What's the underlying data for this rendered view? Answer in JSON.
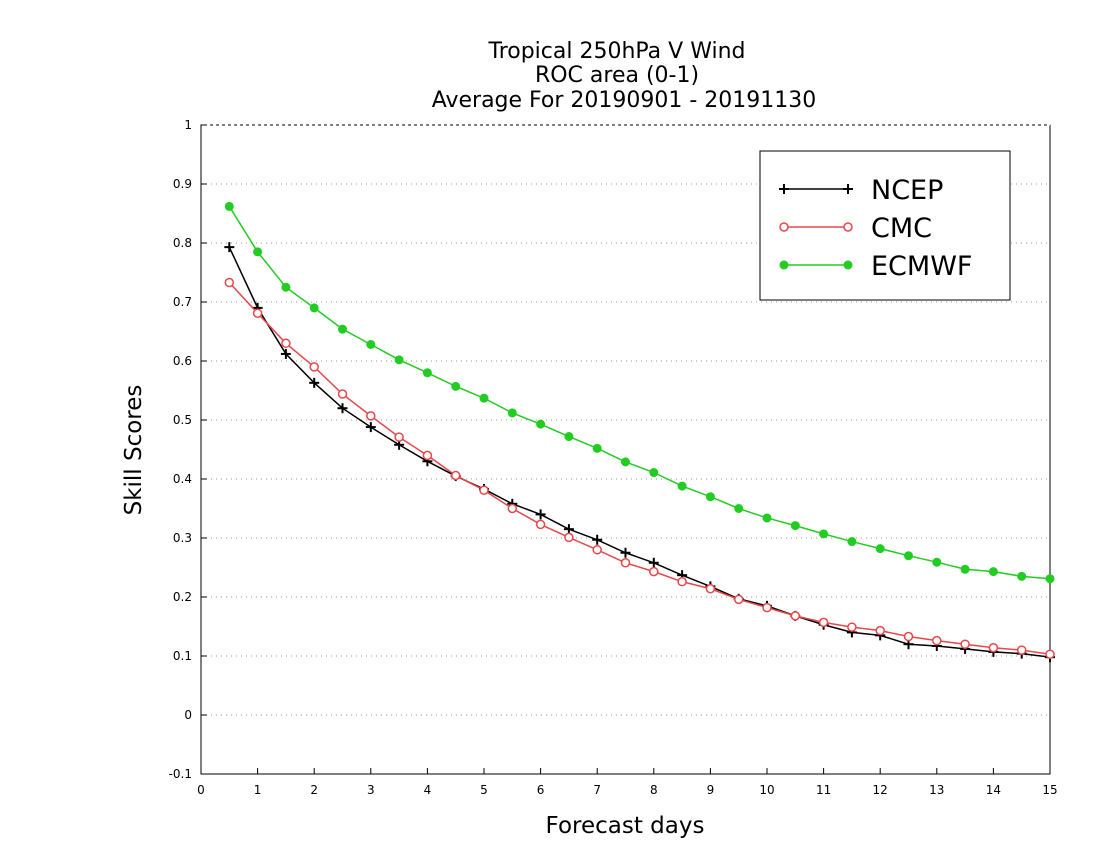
{
  "chart_data": {
    "type": "line",
    "title": [
      "Tropical 250hPa V Wind",
      "ROC area (0-1)",
      "Average For 20190901 - 20191130"
    ],
    "xlabel": "Forecast days",
    "ylabel": "Skill Scores",
    "xlim": [
      0,
      15
    ],
    "ylim": [
      -0.1,
      1
    ],
    "xticks": [
      0,
      1,
      2,
      3,
      4,
      5,
      6,
      7,
      8,
      9,
      10,
      11,
      12,
      13,
      14,
      15
    ],
    "yticks": [
      -0.1,
      0,
      0.1,
      0.2,
      0.3,
      0.4,
      0.5,
      0.6,
      0.7,
      0.8,
      0.9,
      1
    ],
    "ytick_labels": [
      "-0.1",
      "0",
      "0.1",
      "0.2",
      "0.3",
      "0.4",
      "0.5",
      "0.6",
      "0.7",
      "0.8",
      "0.9",
      "1"
    ],
    "grid": "horizontal-dotted",
    "legend_position": "top-right",
    "x": [
      0.5,
      1,
      1.5,
      2,
      2.5,
      3,
      3.5,
      4,
      4.5,
      5,
      5.5,
      6,
      6.5,
      7,
      7.5,
      8,
      8.5,
      9,
      9.5,
      10,
      10.5,
      11,
      11.5,
      12,
      12.5,
      13,
      13.5,
      14,
      14.5,
      15
    ],
    "series": [
      {
        "name": "NCEP",
        "color": "#000000",
        "marker": "plus",
        "values": [
          0.793,
          0.69,
          0.612,
          0.563,
          0.52,
          0.488,
          0.458,
          0.43,
          0.405,
          0.383,
          0.358,
          0.34,
          0.315,
          0.297,
          0.275,
          0.258,
          0.237,
          0.218,
          0.197,
          0.185,
          0.168,
          0.153,
          0.14,
          0.135,
          0.12,
          0.117,
          0.112,
          0.107,
          0.104,
          0.098
        ]
      },
      {
        "name": "CMC",
        "color": "#e8474a",
        "marker": "open-circle",
        "values": [
          0.733,
          0.681,
          0.63,
          0.59,
          0.544,
          0.507,
          0.471,
          0.44,
          0.406,
          0.381,
          0.35,
          0.323,
          0.301,
          0.28,
          0.258,
          0.243,
          0.226,
          0.214,
          0.196,
          0.182,
          0.168,
          0.157,
          0.149,
          0.143,
          0.133,
          0.126,
          0.12,
          0.114,
          0.11,
          0.103
        ]
      },
      {
        "name": "ECMWF",
        "color": "#22cc22",
        "marker": "filled-circle",
        "values": [
          0.862,
          0.785,
          0.725,
          0.69,
          0.654,
          0.628,
          0.602,
          0.58,
          0.557,
          0.537,
          0.512,
          0.493,
          0.472,
          0.452,
          0.429,
          0.411,
          0.388,
          0.37,
          0.35,
          0.334,
          0.321,
          0.307,
          0.294,
          0.282,
          0.27,
          0.259,
          0.247,
          0.243,
          0.235,
          0.231
        ]
      }
    ]
  }
}
